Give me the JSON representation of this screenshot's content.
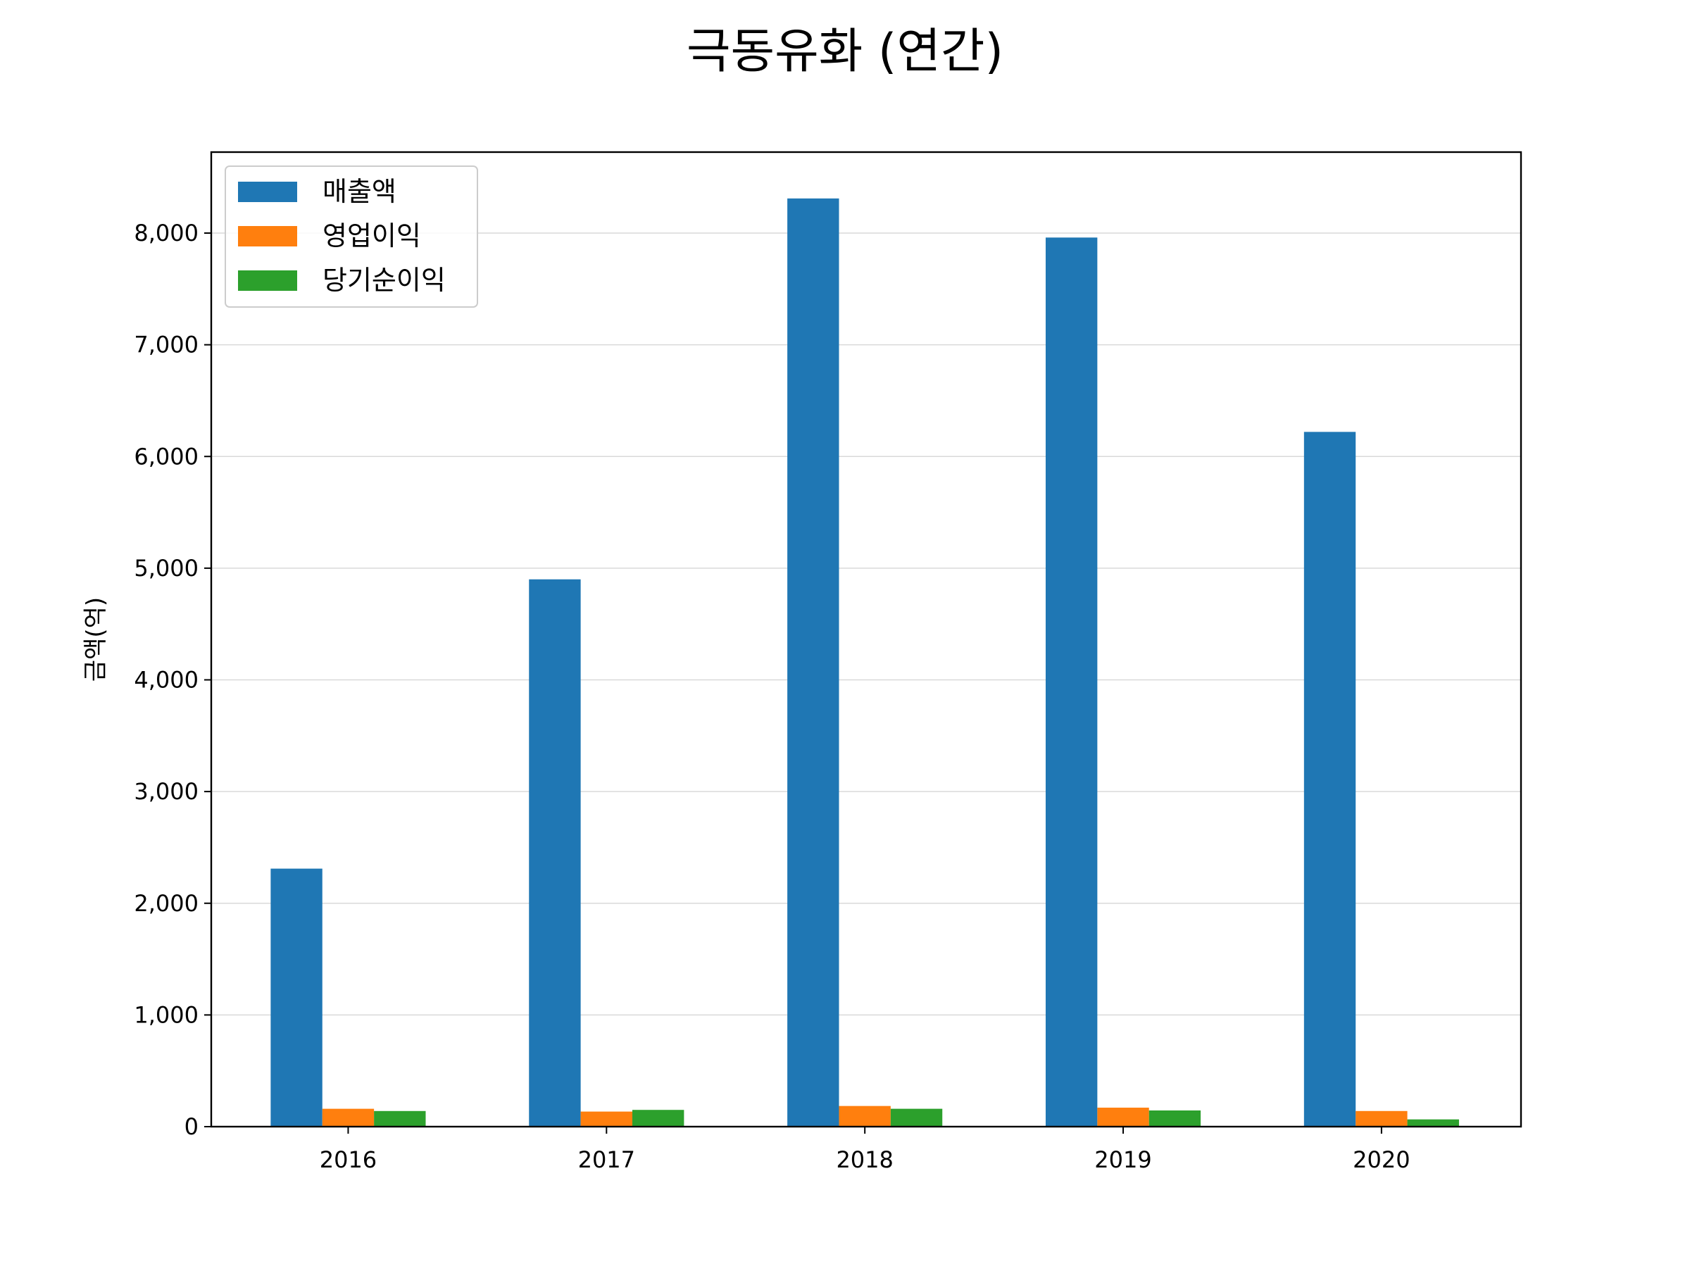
{
  "chart_data": {
    "type": "bar",
    "title": "극동유화 (연간)",
    "xlabel": "",
    "ylabel": "금액(억)",
    "categories": [
      "2016",
      "2017",
      "2018",
      "2019",
      "2020"
    ],
    "series": [
      {
        "name": "매출액",
        "color": "#1f77b4",
        "values": [
          2310,
          4900,
          8310,
          7960,
          6220
        ]
      },
      {
        "name": "영업이익",
        "color": "#ff7f0e",
        "values": [
          160,
          135,
          185,
          170,
          140
        ]
      },
      {
        "name": "당기순이익",
        "color": "#2ca02c",
        "values": [
          140,
          150,
          160,
          145,
          65
        ]
      }
    ],
    "ylim": [
      0,
      8725
    ],
    "yticks": [
      0,
      1000,
      2000,
      3000,
      4000,
      5000,
      6000,
      7000,
      8000
    ],
    "ytick_labels": [
      "0",
      "1,000",
      "2,000",
      "3,000",
      "4,000",
      "5,000",
      "6,000",
      "7,000",
      "8,000"
    ],
    "grid": "horizontal",
    "legend_position": "top-left"
  }
}
